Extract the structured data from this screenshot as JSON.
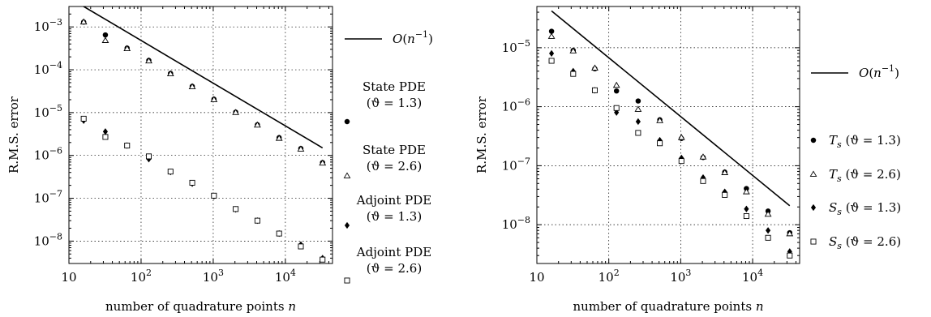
{
  "chart_data": [
    {
      "type": "scatter",
      "x_scale": "log",
      "y_scale": "log",
      "xlabel": "number of quadrature points n",
      "ylabel": "R.M.S. error",
      "xlim": [
        10,
        45000
      ],
      "ylim": [
        3e-09,
        0.003
      ],
      "grid": true,
      "legend_position": "right",
      "x_ticks": [
        {
          "value": 10,
          "label": "10"
        },
        {
          "value": 100,
          "label": "10^2",
          "base": "10",
          "exp": "2"
        },
        {
          "value": 1000,
          "label": "10^3",
          "base": "10",
          "exp": "3"
        },
        {
          "value": 10000,
          "label": "10^4",
          "base": "10",
          "exp": "4"
        }
      ],
      "y_ticks": [
        {
          "value": 1e-08,
          "label": "10^-8",
          "base": "10",
          "exp": "−8"
        },
        {
          "value": 1e-07,
          "label": "10^-7",
          "base": "10",
          "exp": "−7"
        },
        {
          "value": 1e-06,
          "label": "10^-6",
          "base": "10",
          "exp": "−6"
        },
        {
          "value": 1e-05,
          "label": "10^-5",
          "base": "10",
          "exp": "−5"
        },
        {
          "value": 0.0001,
          "label": "10^-4",
          "base": "10",
          "exp": "−4"
        },
        {
          "value": 0.001,
          "label": "10^-3",
          "base": "10",
          "exp": "−3"
        }
      ],
      "reference_line": {
        "name": "O(n^-1)",
        "x": [
          16,
          32768
        ],
        "y": [
          0.003,
          1.5e-06
        ]
      },
      "series": [
        {
          "name": "State PDE (ϑ = 1.3)",
          "legend_lines": [
            "State PDE",
            "(ϑ = 1.3)"
          ],
          "marker": "circle",
          "x": [
            16,
            32,
            64,
            128,
            256,
            512,
            1024,
            2048,
            4096,
            8192,
            16384,
            32768
          ],
          "y": [
            0.0013,
            0.00065,
            0.00032,
            0.000165,
            8.2e-05,
            4.1e-05,
            2.05e-05,
            1.02e-05,
            5.2e-06,
            2.6e-06,
            1.45e-06,
            6.8e-07
          ]
        },
        {
          "name": "State PDE (ϑ = 2.6)",
          "legend_lines": [
            "State PDE",
            "(ϑ = 2.6)"
          ],
          "marker": "triangle",
          "x": [
            16,
            32,
            64,
            128,
            256,
            512,
            1024,
            2048,
            4096,
            8192,
            16384,
            32768
          ],
          "y": [
            0.0013,
            0.00048,
            0.00031,
            0.00016,
            8e-05,
            4e-05,
            2e-05,
            1e-05,
            5.1e-06,
            2.5e-06,
            1.4e-06,
            6.6e-07
          ]
        },
        {
          "name": "Adjoint PDE (ϑ = 1.3)",
          "legend_lines": [
            "Adjoint PDE",
            "(ϑ = 1.3)"
          ],
          "marker": "diamond",
          "x": [
            16,
            32,
            64,
            128,
            256,
            512,
            1024,
            2048,
            4096,
            8192,
            16384,
            32768
          ],
          "y": [
            6.5e-06,
            3.6e-06,
            1.7e-06,
            8.2e-07,
            4.1e-07,
            2.2e-07,
            1.12e-07,
            5.5e-08,
            3e-08,
            1.5e-08,
            8.3e-09,
            4e-09
          ]
        },
        {
          "name": "Adjoint PDE (ϑ = 2.6)",
          "legend_lines": [
            "Adjoint PDE",
            "(ϑ = 2.6)"
          ],
          "marker": "square",
          "x": [
            16,
            32,
            64,
            128,
            256,
            512,
            1024,
            2048,
            4096,
            8192,
            16384,
            32768
          ],
          "y": [
            7.2e-06,
            2.7e-06,
            1.7e-06,
            9.5e-07,
            4.2e-07,
            2.3e-07,
            1.15e-07,
            5.6e-08,
            3e-08,
            1.5e-08,
            7.5e-09,
            3.7e-09
          ]
        }
      ]
    },
    {
      "type": "scatter",
      "x_scale": "log",
      "y_scale": "log",
      "xlabel": "number of quadrature points n",
      "ylabel": "R.M.S. error",
      "xlim": [
        10,
        45000
      ],
      "ylim": [
        2.2e-09,
        5e-05
      ],
      "grid": true,
      "legend_position": "right",
      "x_ticks": [
        {
          "value": 10,
          "label": "10"
        },
        {
          "value": 100,
          "label": "10^2",
          "base": "10",
          "exp": "2"
        },
        {
          "value": 1000,
          "label": "10^3",
          "base": "10",
          "exp": "3"
        },
        {
          "value": 10000,
          "label": "10^4",
          "base": "10",
          "exp": "4"
        }
      ],
      "y_ticks": [
        {
          "value": 1e-08,
          "label": "10^-8",
          "base": "10",
          "exp": "−8"
        },
        {
          "value": 1e-07,
          "label": "10^-7",
          "base": "10",
          "exp": "−7"
        },
        {
          "value": 1e-06,
          "label": "10^-6",
          "base": "10",
          "exp": "−6"
        },
        {
          "value": 1e-05,
          "label": "10^-5",
          "base": "10",
          "exp": "−5"
        }
      ],
      "reference_line": {
        "name": "O(n^-1)",
        "x": [
          16,
          32768
        ],
        "y": [
          4.2e-05,
          2.1e-08
        ]
      },
      "series": [
        {
          "name": "T_s (ϑ = 1.3)",
          "legend_lines": [
            "T_s (ϑ = 1.3)"
          ],
          "legend_math": {
            "sym": "T",
            "sub": "s",
            "rest": " (ϑ = 1.3)"
          },
          "marker": "circle",
          "x": [
            16,
            32,
            64,
            128,
            256,
            512,
            1024,
            2048,
            4096,
            8192,
            16384,
            32768
          ],
          "y": [
            1.9e-05,
            9e-06,
            4.4e-06,
            1.85e-06,
            1.25e-06,
            6e-07,
            2.9e-07,
            1.38e-07,
            7.8e-08,
            4.1e-08,
            1.7e-08,
            7.3e-09
          ]
        },
        {
          "name": "T_s (ϑ = 2.6)",
          "legend_lines": [
            "T_s (ϑ = 2.6)"
          ],
          "legend_math": {
            "sym": "T",
            "sub": "s",
            "rest": " (ϑ = 2.6)"
          },
          "marker": "triangle",
          "x": [
            16,
            32,
            64,
            128,
            256,
            512,
            1024,
            2048,
            4096,
            8192,
            16384,
            32768
          ],
          "y": [
            1.55e-05,
            8.8e-06,
            4.5e-06,
            2.3e-06,
            9e-07,
            5.8e-07,
            3e-07,
            1.4e-07,
            7.6e-08,
            3.6e-08,
            1.5e-08,
            7e-09
          ]
        },
        {
          "name": "S_s (ϑ = 1.3)",
          "legend_lines": [
            "S_s (ϑ = 1.3)"
          ],
          "legend_math": {
            "sym": "S",
            "sub": "s",
            "rest": " (ϑ = 1.3)"
          },
          "marker": "diamond",
          "x": [
            16,
            32,
            64,
            128,
            256,
            512,
            1024,
            2048,
            4096,
            8192,
            16384,
            32768
          ],
          "y": [
            8e-06,
            4e-06,
            1.9e-06,
            8e-07,
            5.6e-07,
            2.7e-07,
            1.35e-07,
            6.3e-08,
            3.6e-08,
            1.85e-08,
            8e-09,
            3.5e-09
          ]
        },
        {
          "name": "S_s (ϑ = 2.6)",
          "legend_lines": [
            "S_s (ϑ = 2.6)"
          ],
          "legend_math": {
            "sym": "S",
            "sub": "s",
            "rest": " (ϑ = 2.6)"
          },
          "marker": "square",
          "x": [
            16,
            32,
            64,
            128,
            256,
            512,
            1024,
            2048,
            4096,
            8192,
            16384,
            32768
          ],
          "y": [
            6e-06,
            3.6e-06,
            1.9e-06,
            9.5e-07,
            3.6e-07,
            2.4e-07,
            1.2e-07,
            5.5e-08,
            3.2e-08,
            1.4e-08,
            6e-09,
            3e-09
          ]
        }
      ]
    }
  ]
}
